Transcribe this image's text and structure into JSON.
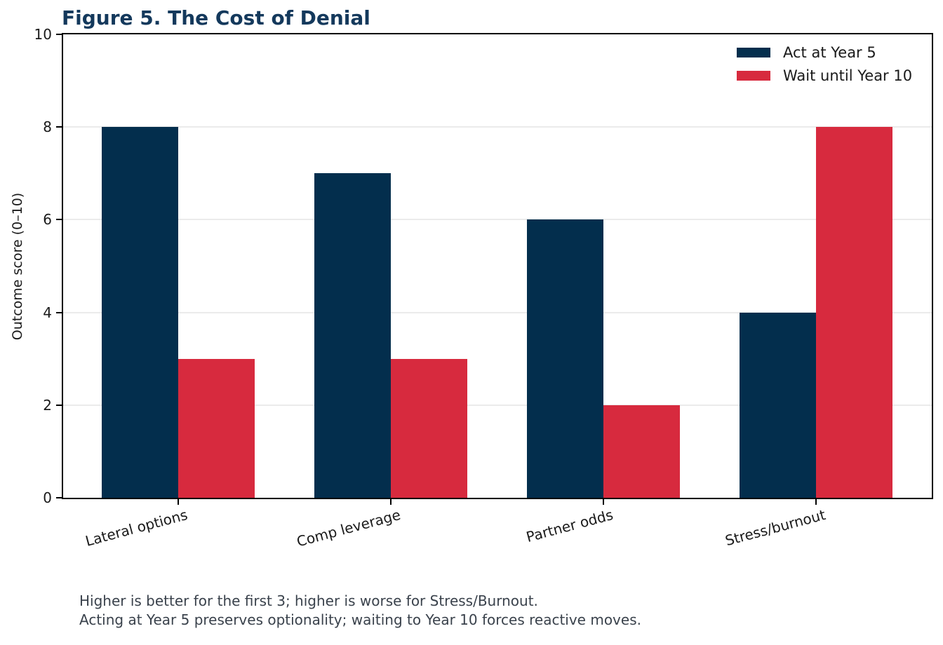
{
  "chart_data": {
    "type": "bar",
    "title": "Figure 5. The Cost of Denial",
    "categories": [
      "Lateral options",
      "Comp leverage",
      "Partner odds",
      "Stress/burnout"
    ],
    "series": [
      {
        "name": "Act at Year 5",
        "color": "#032e4d",
        "values": [
          8,
          7,
          6,
          4
        ]
      },
      {
        "name": "Wait until Year 10",
        "color": "#d72a3e",
        "values": [
          3,
          3,
          2,
          8
        ]
      }
    ],
    "xlabel": "",
    "ylabel": "Outcome score (0–10)",
    "ylim": [
      0,
      10
    ],
    "yticks": [
      0,
      2,
      4,
      6,
      8,
      10
    ],
    "grid": "horizontal",
    "gridline_color": "#ebebeb",
    "legend_position": "upper right",
    "x_tick_rotation_deg": 15
  },
  "footnote": {
    "line1": "Higher is better for the first 3; higher is worse for Stress/Burnout.",
    "line2": "Acting at Year 5 preserves optionality; waiting to Year 10 forces reactive moves."
  },
  "colors": {
    "title": "#14395c",
    "axis": "#000000",
    "tick_label": "#1a1a1a",
    "footnote": "#3a424c",
    "background": "#ffffff"
  }
}
